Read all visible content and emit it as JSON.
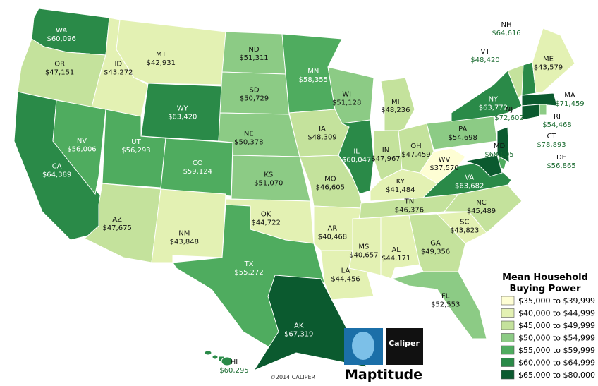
{
  "map": {
    "states": [
      {
        "abbr": "WA",
        "value": "$60,096",
        "color": "#2a8a48"
      },
      {
        "abbr": "OR",
        "value": "$47,151",
        "color": "#c4e29c"
      },
      {
        "abbr": "CA",
        "value": "$64,389",
        "color": "#2a8a48"
      },
      {
        "abbr": "ID",
        "value": "$43,272",
        "color": "#e3f1b3"
      },
      {
        "abbr": "NV",
        "value": "$56,006",
        "color": "#4fac5f"
      },
      {
        "abbr": "MT",
        "value": "$42,931",
        "color": "#e3f1b3"
      },
      {
        "abbr": "WY",
        "value": "$63,420",
        "color": "#2a8a48"
      },
      {
        "abbr": "UT",
        "value": "$56,293",
        "color": "#4fac5f"
      },
      {
        "abbr": "CO",
        "value": "$59,124",
        "color": "#4fac5f"
      },
      {
        "abbr": "AZ",
        "value": "$47,675",
        "color": "#c4e29c"
      },
      {
        "abbr": "NM",
        "value": "$43,848",
        "color": "#e3f1b3"
      },
      {
        "abbr": "ND",
        "value": "$51,311",
        "color": "#8ccb85"
      },
      {
        "abbr": "SD",
        "value": "$50,729",
        "color": "#8ccb85"
      },
      {
        "abbr": "NE",
        "value": "$50,378",
        "color": "#8ccb85"
      },
      {
        "abbr": "KS",
        "value": "$51,070",
        "color": "#8ccb85"
      },
      {
        "abbr": "OK",
        "value": "$44,722",
        "color": "#e3f1b3"
      },
      {
        "abbr": "TX",
        "value": "$55,272",
        "color": "#4fac5f"
      },
      {
        "abbr": "MN",
        "value": "$58,355",
        "color": "#4fac5f"
      },
      {
        "abbr": "IA",
        "value": "$48,309",
        "color": "#c4e29c"
      },
      {
        "abbr": "MO",
        "value": "$46,605",
        "color": "#c4e29c"
      },
      {
        "abbr": "AR",
        "value": "$40,468",
        "color": "#e3f1b3"
      },
      {
        "abbr": "LA",
        "value": "$44,456",
        "color": "#e3f1b3"
      },
      {
        "abbr": "WI",
        "value": "$51,128",
        "color": "#8ccb85"
      },
      {
        "abbr": "IL",
        "value": "$60,047",
        "color": "#2a8a48"
      },
      {
        "abbr": "MI",
        "value": "$48,236",
        "color": "#c4e29c"
      },
      {
        "abbr": "IN",
        "value": "$47,967",
        "color": "#c4e29c"
      },
      {
        "abbr": "OH",
        "value": "$47,459",
        "color": "#c4e29c"
      },
      {
        "abbr": "KY",
        "value": "$41,484",
        "color": "#e3f1b3"
      },
      {
        "abbr": "TN",
        "value": "$46,376",
        "color": "#c4e29c"
      },
      {
        "abbr": "MS",
        "value": "$40,657",
        "color": "#e3f1b3"
      },
      {
        "abbr": "AL",
        "value": "$44,171",
        "color": "#e3f1b3"
      },
      {
        "abbr": "GA",
        "value": "$49,356",
        "color": "#c4e29c"
      },
      {
        "abbr": "FL",
        "value": "$52,553",
        "color": "#8ccb85"
      },
      {
        "abbr": "SC",
        "value": "$43,823",
        "color": "#e3f1b3"
      },
      {
        "abbr": "NC",
        "value": "$45,489",
        "color": "#c4e29c"
      },
      {
        "abbr": "VA",
        "value": "$63,682",
        "color": "#2a8a48"
      },
      {
        "abbr": "WV",
        "value": "$37,570",
        "color": "#fefed4"
      },
      {
        "abbr": "PA",
        "value": "$54,698",
        "color": "#8ccb85"
      },
      {
        "abbr": "NY",
        "value": "$63,772",
        "color": "#2a8a48"
      },
      {
        "abbr": "VT",
        "value": "$48,420",
        "color": "#c4e29c"
      },
      {
        "abbr": "NH",
        "value": "$64,616",
        "color": "#2a8a48"
      },
      {
        "abbr": "ME",
        "value": "$43,579",
        "color": "#e3f1b3"
      },
      {
        "abbr": "MA",
        "value": "$71,459",
        "color": "#0b5a2f"
      },
      {
        "abbr": "RI",
        "value": "$54,468",
        "color": "#8ccb85"
      },
      {
        "abbr": "CT",
        "value": "$78,893",
        "color": "#0b5a2f"
      },
      {
        "abbr": "NJ",
        "value": "$72,602",
        "color": "#0b5a2f"
      },
      {
        "abbr": "DE",
        "value": "$56,865",
        "color": "#4fac5f"
      },
      {
        "abbr": "MD",
        "value": "$68,005",
        "color": "#0b5a2f"
      },
      {
        "abbr": "AK",
        "value": "$67,319",
        "color": "#0b5a2f"
      },
      {
        "abbr": "HI",
        "value": "$60,295",
        "color": "#2a8a48"
      }
    ],
    "legend": {
      "title": [
        "Mean Household",
        "Buying Power"
      ],
      "bins": [
        {
          "label": "$35,000 to $39,999",
          "color": "#fefed4"
        },
        {
          "label": "$40,000 to $44,999",
          "color": "#e3f1b3"
        },
        {
          "label": "$45,000 to $49,999",
          "color": "#c4e29c"
        },
        {
          "label": "$50,000 to $54,999",
          "color": "#8ccb85"
        },
        {
          "label": "$55,000 to $59,999",
          "color": "#4fac5f"
        },
        {
          "label": "$60,000 to $64,999",
          "color": "#2a8a48"
        },
        {
          "label": "$65,000 to $80,000",
          "color": "#0b5a2f"
        }
      ]
    },
    "copyright": "©2014 CALIPER",
    "logo_text": "Caliper",
    "product": "Maptitude"
  }
}
